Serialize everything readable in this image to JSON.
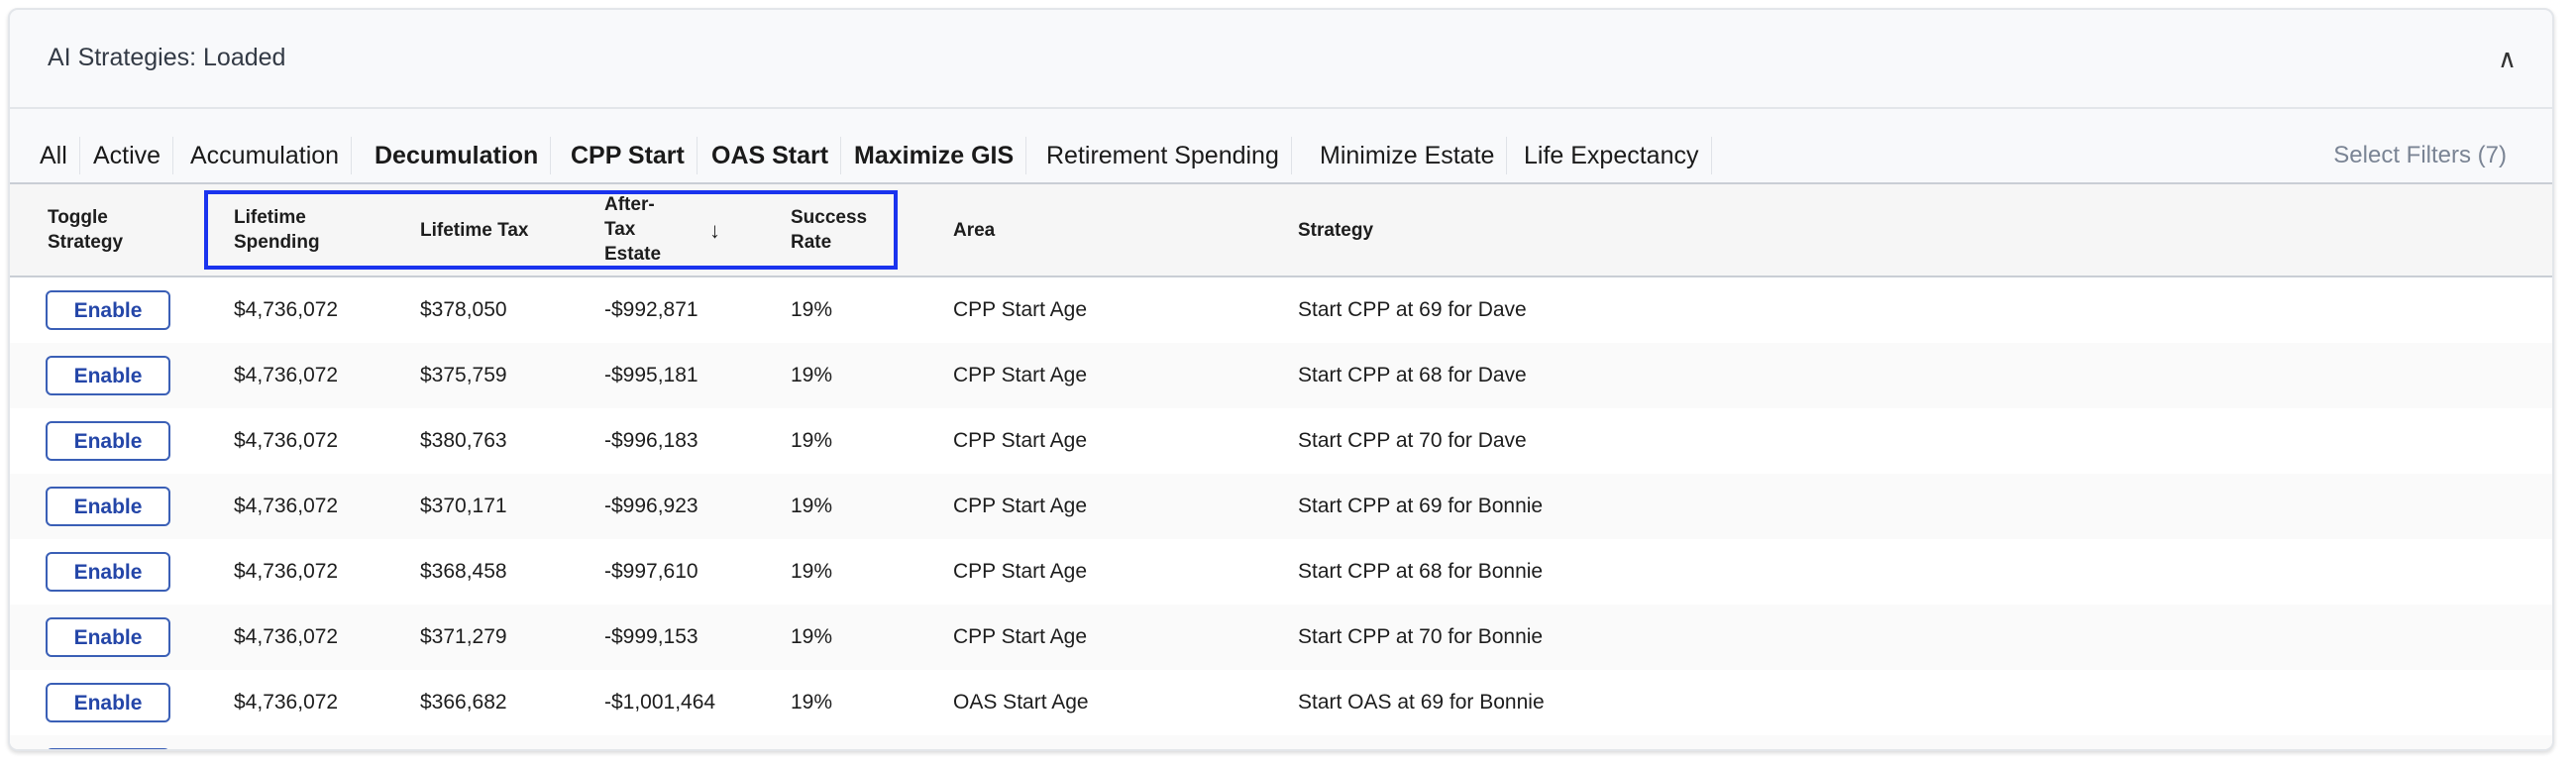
{
  "panel": {
    "title": "AI Strategies: Loaded",
    "collapse_icon": "chevron-up-icon"
  },
  "filters": {
    "tabs": [
      {
        "label": "All",
        "bold": false
      },
      {
        "label": "Active",
        "bold": false
      },
      {
        "label": "Accumulation",
        "bold": false
      },
      {
        "label": "Decumulation",
        "bold": true
      },
      {
        "label": "CPP Start",
        "bold": true
      },
      {
        "label": "OAS Start",
        "bold": true
      },
      {
        "label": "Maximize GIS",
        "bold": true
      },
      {
        "label": "Retirement Spending",
        "bold": false
      },
      {
        "label": "Minimize Estate",
        "bold": false
      },
      {
        "label": "Life Expectancy",
        "bold": false
      }
    ],
    "select_label": "Select Filters (7)"
  },
  "table": {
    "headers": {
      "toggle": "Toggle Strategy",
      "spending": "Lifetime Spending",
      "tax": "Lifetime Tax",
      "estate": "After-Tax Estate",
      "sort_icon": "↓",
      "success": "Success Rate",
      "area": "Area",
      "strategy": "Strategy"
    },
    "highlight_color": "#1a33ee",
    "rows": [
      {
        "button": "Enable",
        "spending": "$4,736,072",
        "tax": "$378,050",
        "estate": "-$992,871",
        "success": "19%",
        "area": "CPP Start Age",
        "strategy": "Start CPP at 69 for Dave"
      },
      {
        "button": "Enable",
        "spending": "$4,736,072",
        "tax": "$375,759",
        "estate": "-$995,181",
        "success": "19%",
        "area": "CPP Start Age",
        "strategy": "Start CPP at 68 for Dave"
      },
      {
        "button": "Enable",
        "spending": "$4,736,072",
        "tax": "$380,763",
        "estate": "-$996,183",
        "success": "19%",
        "area": "CPP Start Age",
        "strategy": "Start CPP at 70 for Dave"
      },
      {
        "button": "Enable",
        "spending": "$4,736,072",
        "tax": "$370,171",
        "estate": "-$996,923",
        "success": "19%",
        "area": "CPP Start Age",
        "strategy": "Start CPP at 69 for Bonnie"
      },
      {
        "button": "Enable",
        "spending": "$4,736,072",
        "tax": "$368,458",
        "estate": "-$997,610",
        "success": "19%",
        "area": "CPP Start Age",
        "strategy": "Start CPP at 68 for Bonnie"
      },
      {
        "button": "Enable",
        "spending": "$4,736,072",
        "tax": "$371,279",
        "estate": "-$999,153",
        "success": "19%",
        "area": "CPP Start Age",
        "strategy": "Start CPP at 70 for Bonnie"
      },
      {
        "button": "Enable",
        "spending": "$4,736,072",
        "tax": "$366,682",
        "estate": "-$1,001,464",
        "success": "19%",
        "area": "OAS Start Age",
        "strategy": "Start OAS at 69 for Bonnie"
      }
    ]
  }
}
